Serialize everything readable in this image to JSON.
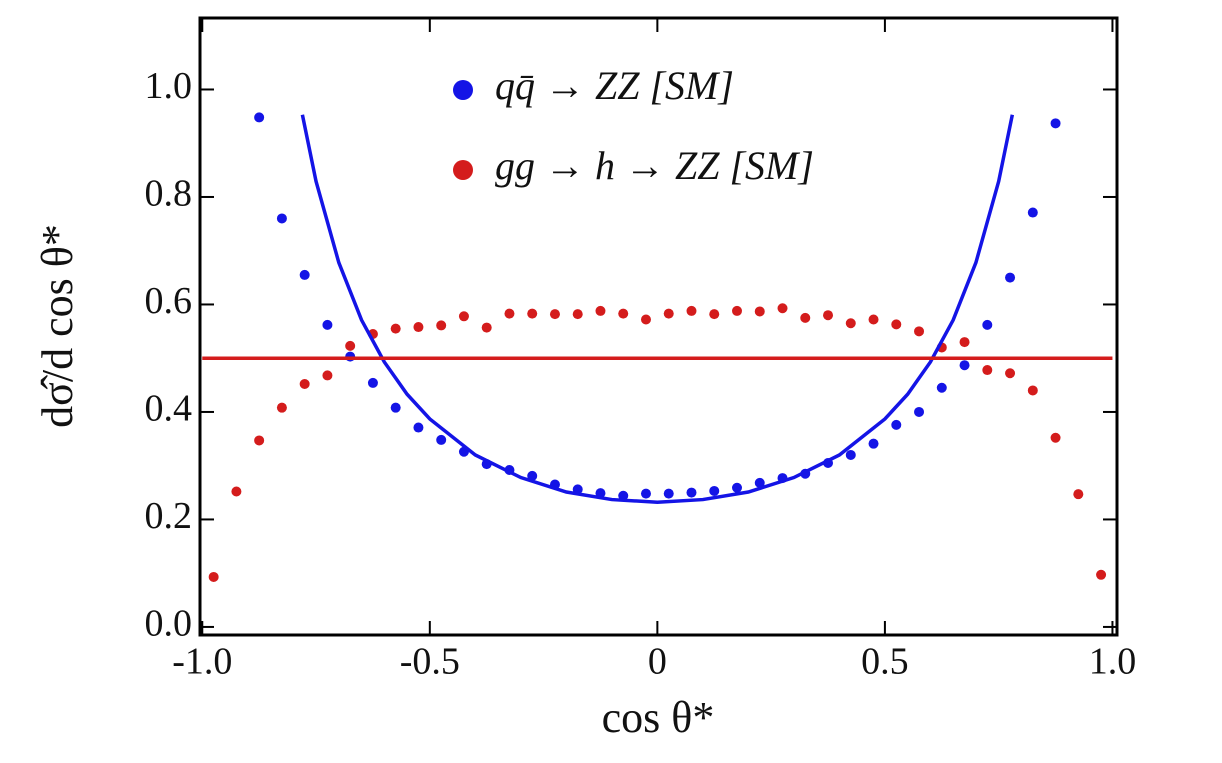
{
  "chart_data": {
    "type": "scatter",
    "xlabel": "cos θ*",
    "ylabel": "dσ̂/d cos θ*",
    "xlim": [
      -1.005,
      1.01
    ],
    "ylim": [
      -0.015,
      1.133
    ],
    "xticks": [
      {
        "value": -1.0,
        "label": "-1.0"
      },
      -0.5,
      0,
      0.5,
      {
        "value": 1.0,
        "label": "1.0"
      }
    ],
    "yticks": [
      {
        "value": 0.0,
        "label": "0.0"
      },
      0.2,
      0.4,
      0.6,
      0.8,
      {
        "value": 1.0,
        "label": "1.0"
      }
    ],
    "series": [
      {
        "name": "qq̄ → ZZ [SM]",
        "color": "#1414e6",
        "mode": "markers",
        "x": [
          -0.875,
          -0.825,
          -0.775,
          -0.725,
          -0.675,
          -0.625,
          -0.575,
          -0.525,
          -0.475,
          -0.425,
          -0.375,
          -0.325,
          -0.275,
          -0.225,
          -0.175,
          -0.125,
          -0.075,
          -0.025,
          0.025,
          0.075,
          0.125,
          0.175,
          0.225,
          0.275,
          0.325,
          0.375,
          0.425,
          0.475,
          0.525,
          0.575,
          0.625,
          0.675,
          0.725,
          0.775,
          0.825,
          0.875
        ],
        "values": [
          0.948,
          0.76,
          0.655,
          0.562,
          0.503,
          0.454,
          0.408,
          0.371,
          0.348,
          0.326,
          0.303,
          0.292,
          0.281,
          0.265,
          0.256,
          0.249,
          0.244,
          0.248,
          0.248,
          0.25,
          0.253,
          0.259,
          0.268,
          0.277,
          0.285,
          0.305,
          0.32,
          0.341,
          0.376,
          0.4,
          0.445,
          0.487,
          0.562,
          0.65,
          0.771,
          0.937
        ]
      },
      {
        "name": "gg → h → ZZ [SM]",
        "color": "#d41c1c",
        "mode": "markers",
        "x": [
          -0.975,
          -0.925,
          -0.875,
          -0.825,
          -0.775,
          -0.725,
          -0.675,
          -0.625,
          -0.575,
          -0.525,
          -0.475,
          -0.425,
          -0.375,
          -0.325,
          -0.275,
          -0.225,
          -0.175,
          -0.125,
          -0.075,
          -0.025,
          0.025,
          0.075,
          0.125,
          0.175,
          0.225,
          0.275,
          0.325,
          0.375,
          0.425,
          0.475,
          0.525,
          0.575,
          0.625,
          0.675,
          0.725,
          0.775,
          0.825,
          0.875,
          0.925,
          0.975
        ],
        "values": [
          0.093,
          0.252,
          0.347,
          0.408,
          0.452,
          0.468,
          0.523,
          0.545,
          0.555,
          0.558,
          0.561,
          0.578,
          0.557,
          0.583,
          0.583,
          0.582,
          0.582,
          0.588,
          0.583,
          0.572,
          0.583,
          0.588,
          0.582,
          0.588,
          0.587,
          0.593,
          0.575,
          0.58,
          0.565,
          0.572,
          0.563,
          0.55,
          0.52,
          0.53,
          0.478,
          0.472,
          0.44,
          0.352,
          0.247,
          0.097
        ]
      },
      {
        "color": "#1414e6",
        "mode": "line",
        "x": [
          -0.78,
          -0.75,
          -0.7,
          -0.65,
          -0.6,
          -0.55,
          -0.5,
          -0.4,
          -0.3,
          -0.2,
          -0.1,
          0,
          0.1,
          0.2,
          0.3,
          0.4,
          0.5,
          0.55,
          0.6,
          0.65,
          0.7,
          0.75,
          0.78
        ],
        "values": [
          0.953,
          0.829,
          0.678,
          0.571,
          0.493,
          0.433,
          0.387,
          0.32,
          0.278,
          0.251,
          0.237,
          0.232,
          0.237,
          0.251,
          0.278,
          0.32,
          0.387,
          0.433,
          0.493,
          0.571,
          0.678,
          0.829,
          0.953
        ]
      },
      {
        "color": "#d41c1c",
        "mode": "line",
        "x": [
          -1.0,
          1.0
        ],
        "values": [
          0.5,
          0.5
        ]
      }
    ]
  }
}
